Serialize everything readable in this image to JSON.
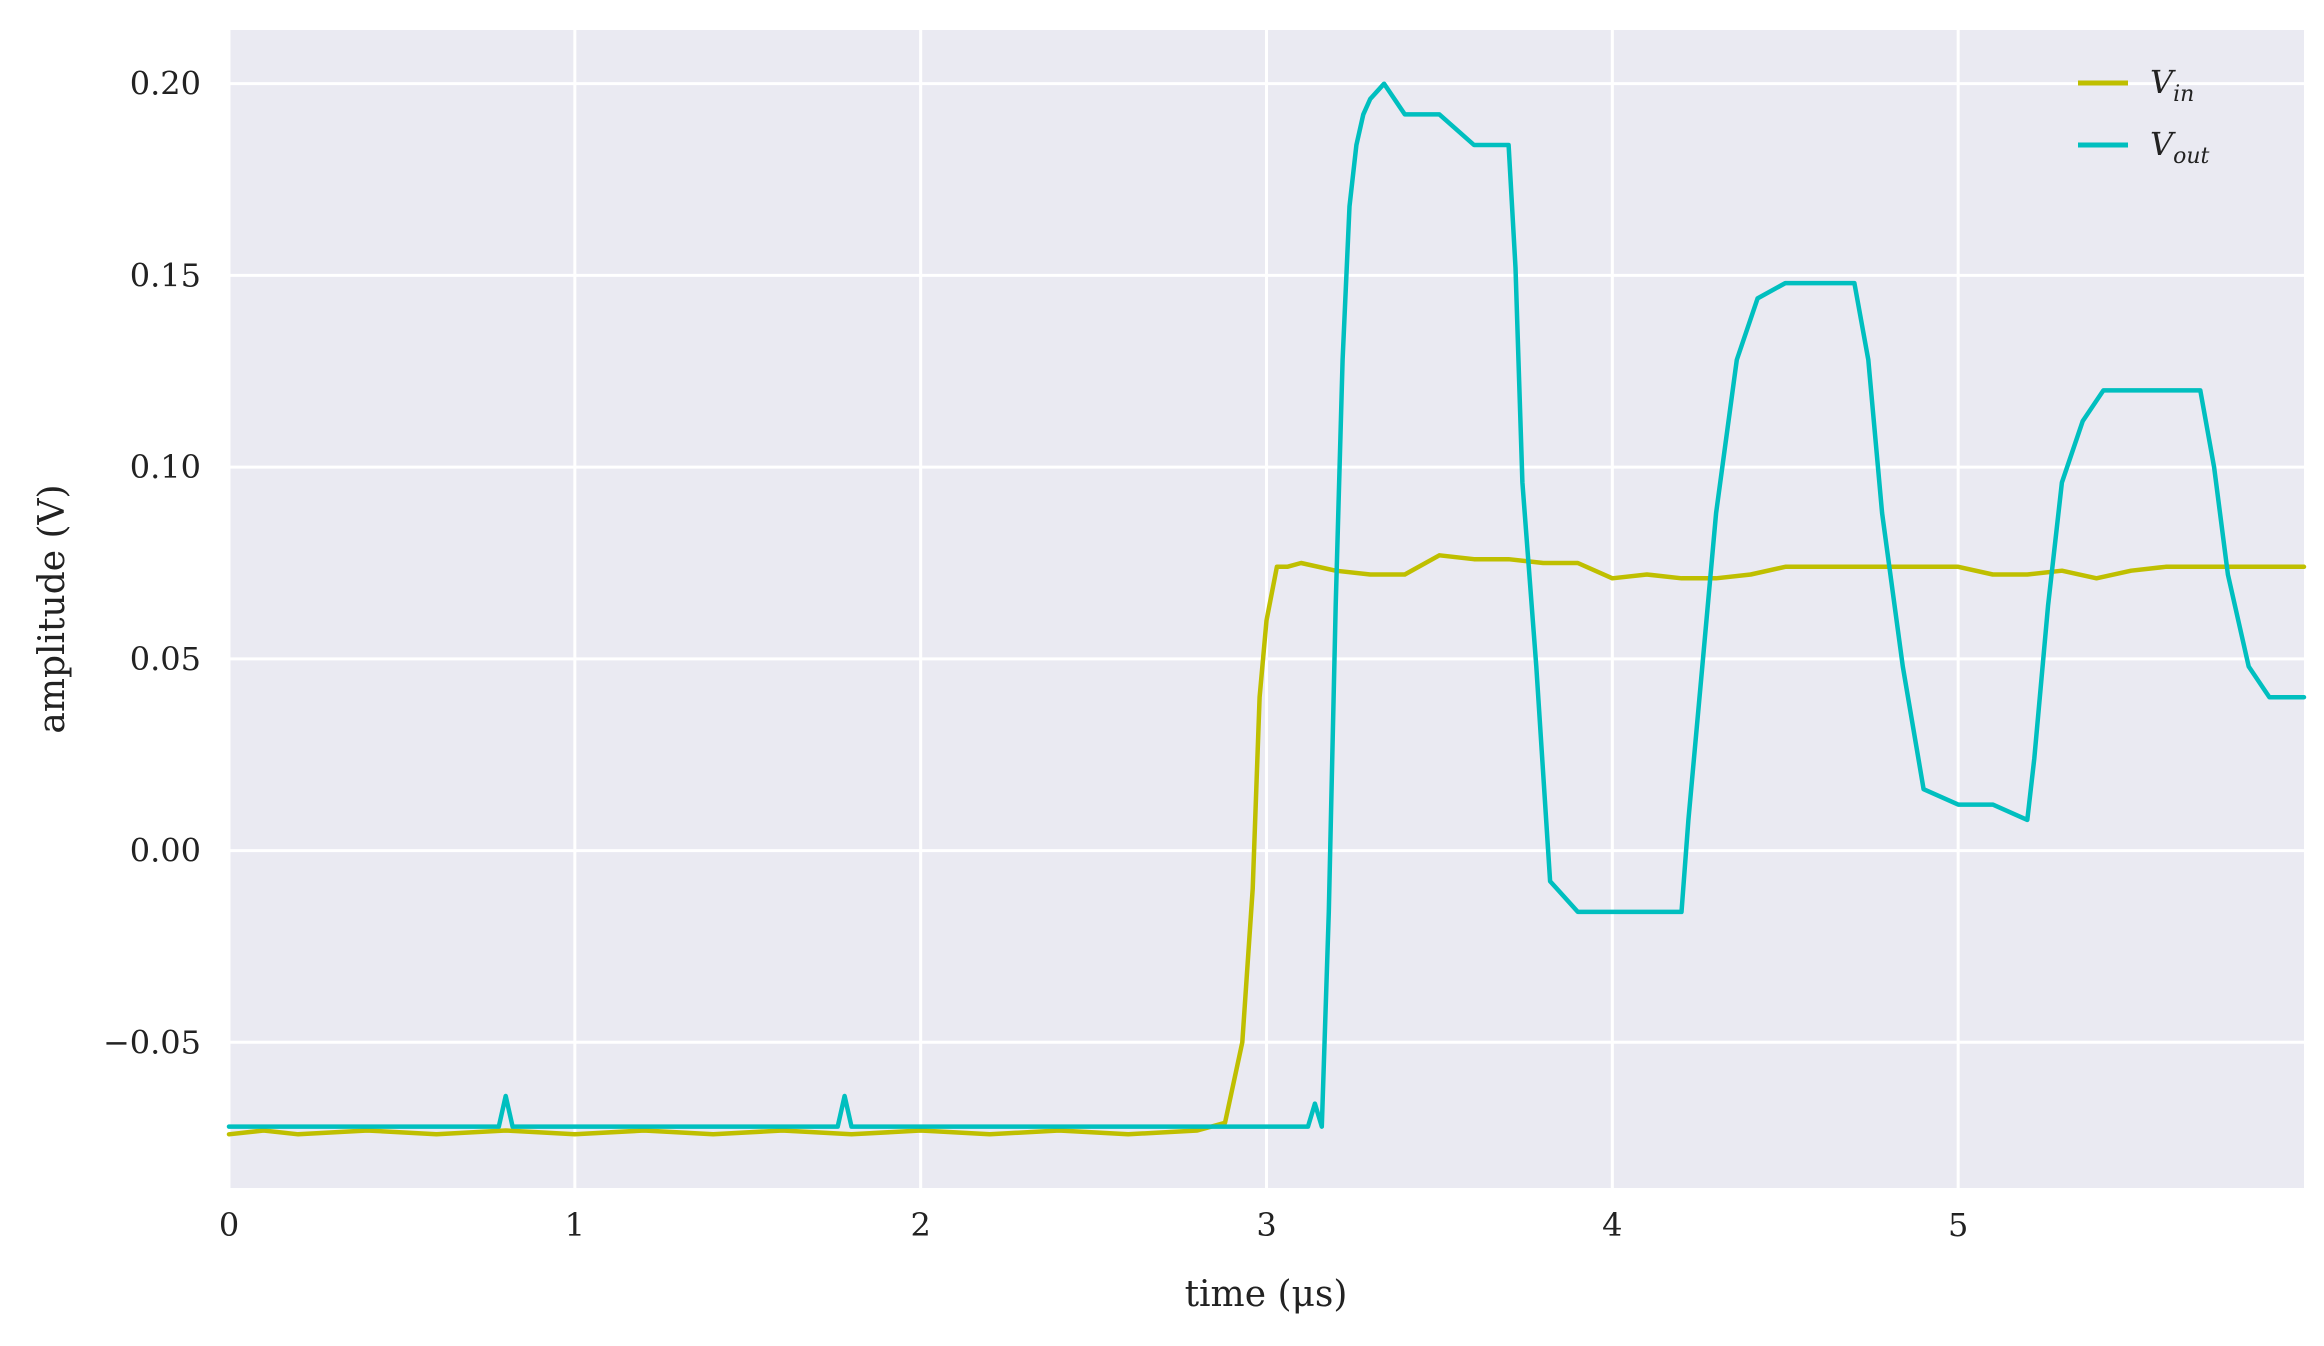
{
  "chart_data": {
    "type": "line",
    "xlabel": "time (μs)",
    "ylabel": "amplitude (V)",
    "xlim": [
      0,
      6.0
    ],
    "ylim": [
      -0.088,
      0.214
    ],
    "x_ticks": [
      {
        "value": 0,
        "label": "0"
      },
      {
        "value": 1,
        "label": "1"
      },
      {
        "value": 2,
        "label": "2"
      },
      {
        "value": 3,
        "label": "3"
      },
      {
        "value": 4,
        "label": "4"
      },
      {
        "value": 5,
        "label": "5"
      }
    ],
    "y_ticks": [
      {
        "value": 0.2,
        "label": "0.20"
      },
      {
        "value": 0.15,
        "label": "0.15"
      },
      {
        "value": 0.1,
        "label": "0.10"
      },
      {
        "value": 0.05,
        "label": "0.05"
      },
      {
        "value": 0.0,
        "label": "0.00"
      },
      {
        "value": -0.05,
        "label": "−0.05"
      }
    ],
    "grid": true,
    "legend_position": "top-right",
    "background": "#EAEAF2",
    "series": [
      {
        "name": "V",
        "name_sub": "in",
        "color": "#BFBF00",
        "x": [
          0,
          0.1,
          0.2,
          0.4,
          0.6,
          0.8,
          1.0,
          1.2,
          1.4,
          1.6,
          1.8,
          2.0,
          2.2,
          2.4,
          2.6,
          2.8,
          2.88,
          2.93,
          2.96,
          2.98,
          3.0,
          3.03,
          3.06,
          3.1,
          3.2,
          3.3,
          3.4,
          3.5,
          3.6,
          3.7,
          3.8,
          3.9,
          4.0,
          4.1,
          4.2,
          4.3,
          4.4,
          4.5,
          4.6,
          4.7,
          4.8,
          4.9,
          5.0,
          5.1,
          5.2,
          5.3,
          5.4,
          5.5,
          5.6,
          5.7,
          5.8,
          5.9,
          6.0
        ],
        "y": [
          -0.074,
          -0.073,
          -0.074,
          -0.073,
          -0.074,
          -0.073,
          -0.074,
          -0.073,
          -0.074,
          -0.073,
          -0.074,
          -0.073,
          -0.074,
          -0.073,
          -0.074,
          -0.073,
          -0.071,
          -0.05,
          -0.01,
          0.04,
          0.06,
          0.074,
          0.074,
          0.075,
          0.073,
          0.072,
          0.072,
          0.077,
          0.076,
          0.076,
          0.075,
          0.075,
          0.071,
          0.072,
          0.071,
          0.071,
          0.072,
          0.074,
          0.074,
          0.074,
          0.074,
          0.074,
          0.074,
          0.072,
          0.072,
          0.073,
          0.071,
          0.073,
          0.074,
          0.074,
          0.074,
          0.074,
          0.074
        ]
      },
      {
        "name": "V",
        "name_sub": "out",
        "color": "#00BFBF",
        "x": [
          0,
          0.78,
          0.8,
          0.82,
          1.76,
          1.78,
          1.8,
          3.12,
          3.14,
          3.16,
          3.18,
          3.2,
          3.22,
          3.24,
          3.26,
          3.28,
          3.3,
          3.34,
          3.4,
          3.5,
          3.6,
          3.7,
          3.72,
          3.74,
          3.78,
          3.82,
          3.9,
          4.0,
          4.1,
          4.2,
          4.22,
          4.26,
          4.3,
          4.36,
          4.42,
          4.5,
          4.6,
          4.7,
          4.74,
          4.78,
          4.84,
          4.9,
          5.0,
          5.1,
          5.2,
          5.22,
          5.26,
          5.3,
          5.36,
          5.42,
          5.5,
          5.6,
          5.7,
          5.74,
          5.78,
          5.84,
          5.9,
          6.0
        ],
        "y": [
          -0.072,
          -0.072,
          -0.064,
          -0.072,
          -0.072,
          -0.064,
          -0.072,
          -0.072,
          -0.066,
          -0.072,
          -0.016,
          0.064,
          0.128,
          0.168,
          0.184,
          0.192,
          0.196,
          0.2,
          0.192,
          0.192,
          0.184,
          0.184,
          0.152,
          0.096,
          0.048,
          -0.008,
          -0.016,
          -0.016,
          -0.016,
          -0.016,
          0.008,
          0.048,
          0.088,
          0.128,
          0.144,
          0.148,
          0.148,
          0.148,
          0.128,
          0.088,
          0.048,
          0.016,
          0.012,
          0.012,
          0.008,
          0.024,
          0.064,
          0.096,
          0.112,
          0.12,
          0.12,
          0.12,
          0.12,
          0.1,
          0.072,
          0.048,
          0.04,
          0.04
        ]
      }
    ]
  }
}
